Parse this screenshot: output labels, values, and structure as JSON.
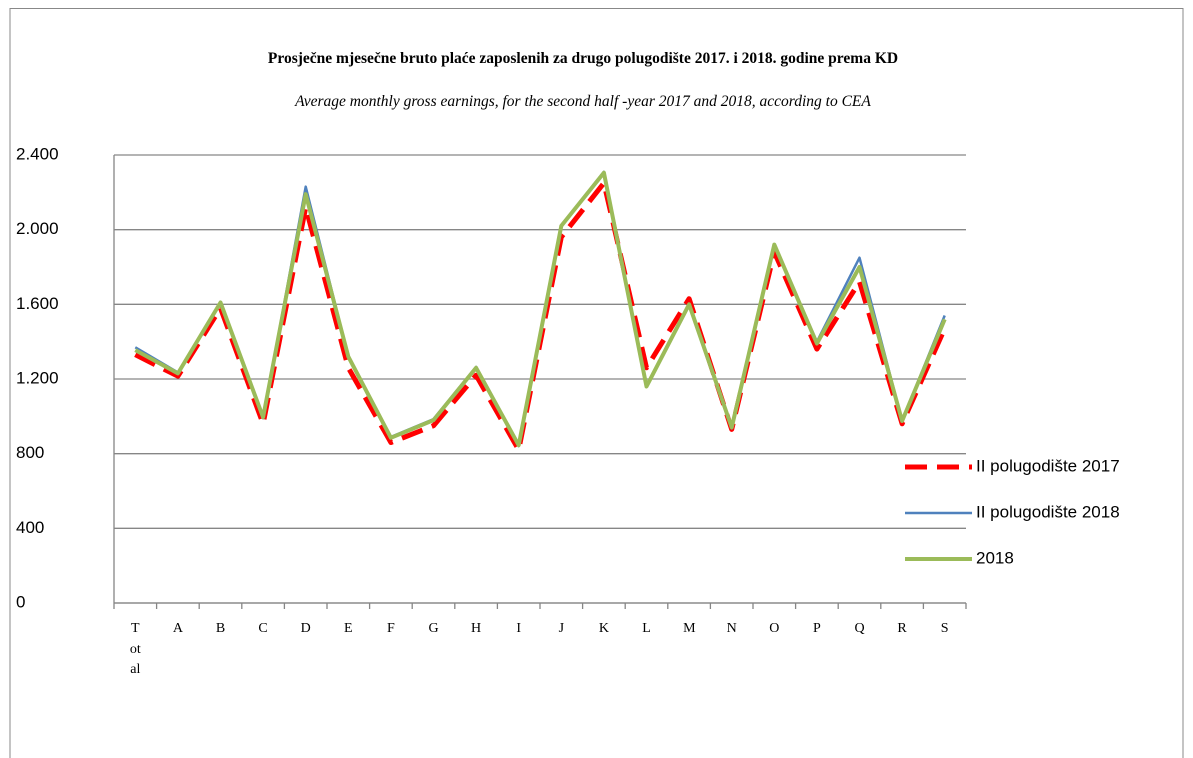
{
  "chart_data": {
    "type": "line",
    "title": "Prosječne mjesečne bruto plaće zaposlenih  za drugo polugodište 2017. i 2018. godine prema KD",
    "subtitle": "Average monthly gross earnings, for the second half -year 2017 and 2018, according to CEA",
    "categories": [
      "Total",
      "A",
      "B",
      "C",
      "D",
      "E",
      "F",
      "G",
      "H",
      "I",
      "J",
      "K",
      "L",
      "M",
      "N",
      "O",
      "P",
      "Q",
      "R",
      "S"
    ],
    "series": [
      {
        "name": "II polugodište 2017",
        "color": "#ff0000",
        "style": "dashed",
        "values": [
          1330,
          1215,
          1580,
          960,
          2120,
          1260,
          860,
          950,
          1220,
          820,
          1960,
          2250,
          1260,
          1630,
          930,
          1880,
          1360,
          1720,
          960,
          1470
        ]
      },
      {
        "name": "II polugodište 2018",
        "color": "#4f81bd",
        "style": "solid",
        "values": [
          1370,
          1235,
          1610,
          990,
          2230,
          1320,
          890,
          985,
          1265,
          840,
          2020,
          2310,
          1160,
          1600,
          935,
          1920,
          1400,
          1850,
          975,
          1540
        ]
      },
      {
        "name": "2018",
        "color": "#9bbb59",
        "style": "solid",
        "values": [
          1355,
          1230,
          1610,
          995,
          2190,
          1320,
          885,
          980,
          1260,
          845,
          2020,
          2305,
          1160,
          1600,
          940,
          1920,
          1390,
          1800,
          975,
          1520
        ]
      }
    ],
    "ylim": [
      0,
      2400
    ],
    "yticks": [
      0,
      400,
      800,
      {
        "value": 1200,
        "label": "1.200"
      },
      {
        "value": 1600,
        "label": "1.600"
      },
      {
        "value": 2000,
        "label": "2.000"
      },
      {
        "value": 2400,
        "label": "2.400"
      }
    ],
    "grid": true,
    "legend": "right"
  }
}
